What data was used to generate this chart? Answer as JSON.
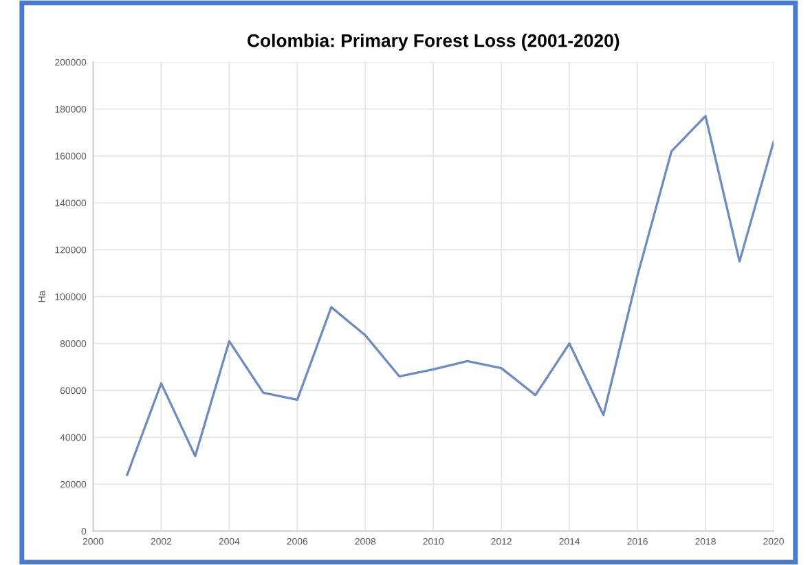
{
  "chart_data": {
    "type": "line",
    "title": "Colombia: Primary Forest Loss (2001-2020)",
    "ylabel": "Ha",
    "x": [
      2001,
      2002,
      2003,
      2004,
      2005,
      2006,
      2007,
      2008,
      2009,
      2010,
      2011,
      2012,
      2013,
      2014,
      2015,
      2016,
      2017,
      2018,
      2019,
      2020
    ],
    "series": [
      {
        "color": "#6f8cbf",
        "values": [
          24000,
          63000,
          32000,
          81000,
          59000,
          56000,
          95500,
          83500,
          66000,
          69000,
          72500,
          69500,
          58000,
          80000,
          49500,
          109000,
          162000,
          177000,
          115000,
          166000
        ]
      }
    ],
    "xlim": [
      2000,
      2020
    ],
    "xticks": [
      2000,
      2002,
      2004,
      2006,
      2008,
      2010,
      2012,
      2014,
      2016,
      2018,
      2020
    ],
    "ylim": [
      0,
      200000
    ],
    "yticks": [
      0,
      20000,
      40000,
      60000,
      80000,
      100000,
      120000,
      140000,
      160000,
      180000,
      200000
    ],
    "grid": true,
    "marker": "none",
    "line_style": "solid"
  }
}
